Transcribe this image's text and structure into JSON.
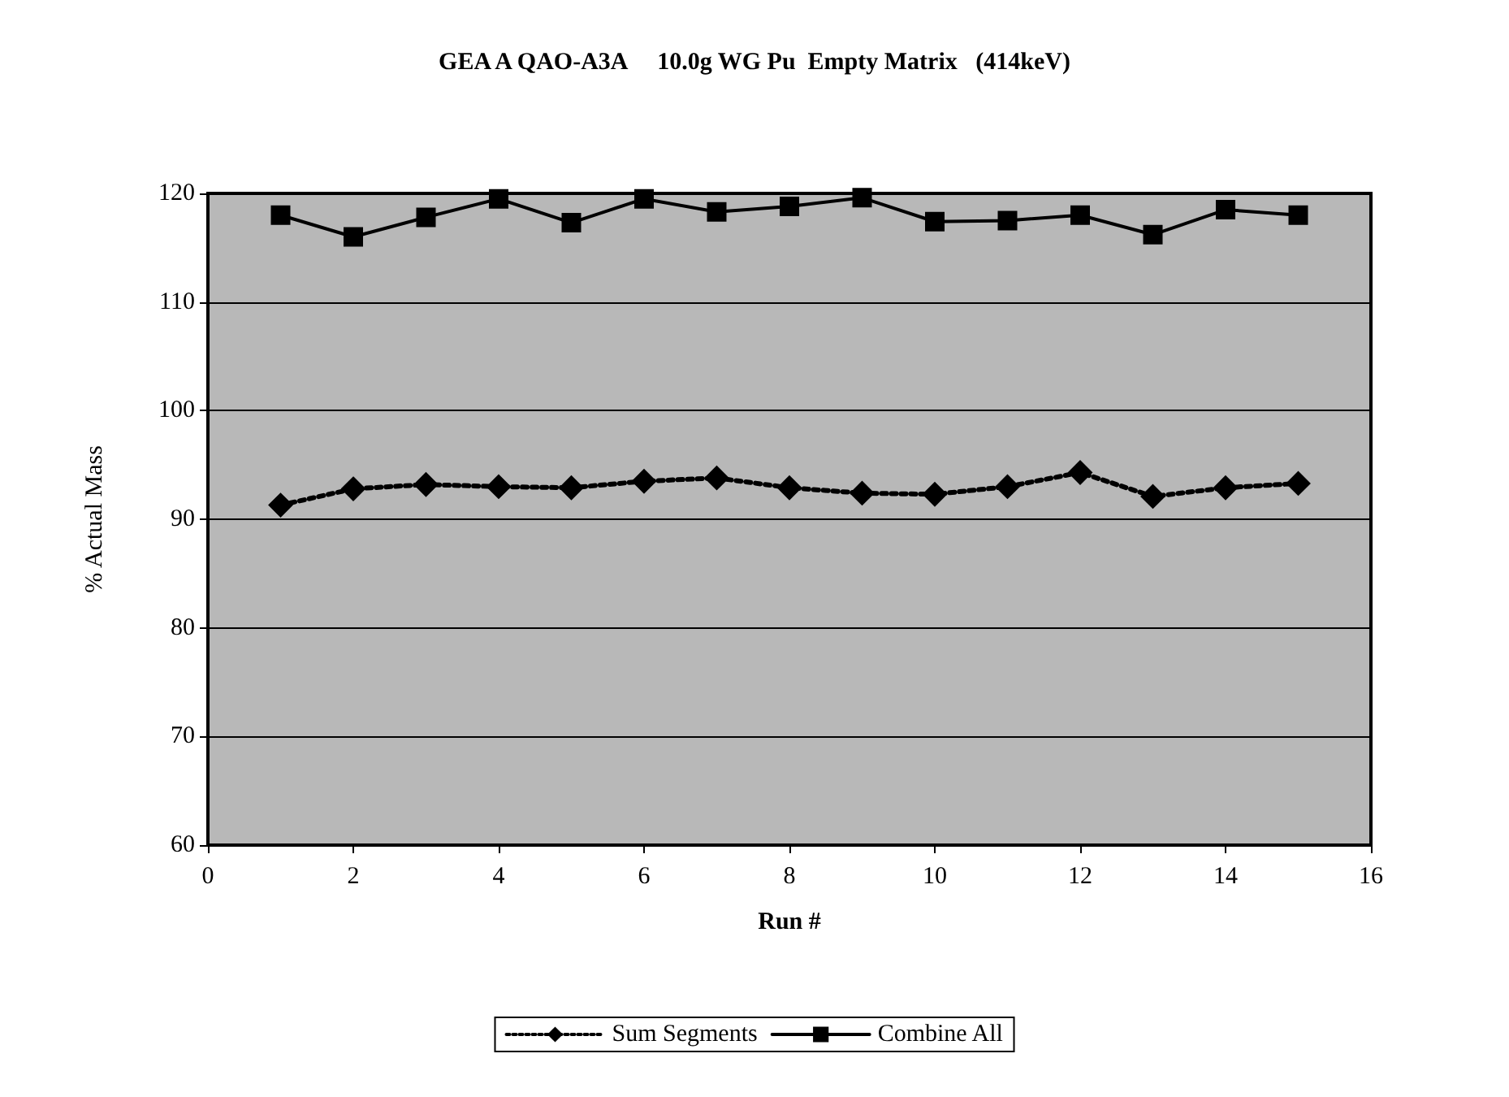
{
  "chart_data": {
    "type": "line",
    "title": "GEA A QAO-A3A     10.0g WG Pu  Empty Matrix   (414keV)",
    "xlabel": "Run #",
    "ylabel": "% Actual Mass",
    "x": [
      1,
      2,
      3,
      4,
      5,
      6,
      7,
      8,
      9,
      10,
      11,
      12,
      13,
      14,
      15
    ],
    "series": [
      {
        "name": "Sum Segments",
        "color": "#000000",
        "marker": "diamond",
        "line_style": "dotted",
        "values": [
          91.3,
          92.8,
          93.2,
          93.0,
          92.9,
          93.5,
          93.8,
          92.9,
          92.4,
          92.3,
          93.0,
          94.3,
          92.1,
          92.9,
          93.3
        ]
      },
      {
        "name": "Combine All",
        "color": "#000000",
        "marker": "square",
        "line_style": "solid",
        "values": [
          118.0,
          116.0,
          117.8,
          119.5,
          117.3,
          119.5,
          118.3,
          118.8,
          119.6,
          117.4,
          117.5,
          118.0,
          116.2,
          118.5,
          118.0
        ]
      }
    ],
    "xlim": [
      0,
      16
    ],
    "xticks": [
      0,
      2,
      4,
      6,
      8,
      10,
      12,
      14,
      16
    ],
    "ylim": [
      60,
      120
    ],
    "yticks": [
      60,
      70,
      80,
      90,
      100,
      110,
      120
    ],
    "grid": "y",
    "legend": "bottom"
  }
}
